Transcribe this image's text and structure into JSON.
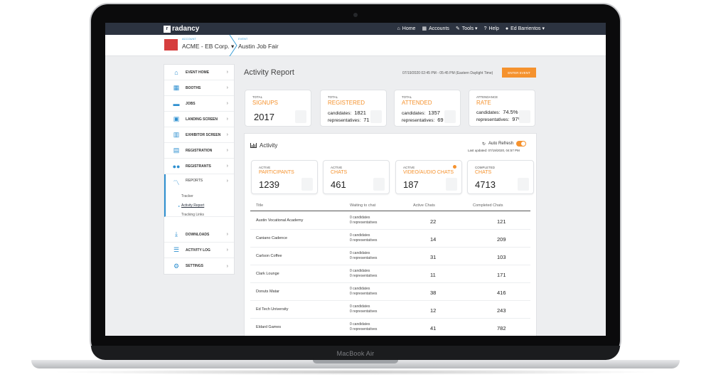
{
  "device": {
    "brand": "MacBook Air"
  },
  "topnav": {
    "logo_text": "radancy",
    "items": [
      {
        "icon": "home-icon",
        "label": "Home"
      },
      {
        "icon": "building-icon",
        "label": "Accounts"
      },
      {
        "icon": "wrench-icon",
        "label": "Tools ▾"
      },
      {
        "icon": "question-circle-icon",
        "label": "Help"
      },
      {
        "icon": "user-icon",
        "label": "Ed Barrientos ▾"
      }
    ]
  },
  "eventbar": {
    "account_caption": "ACCOUNT",
    "account_name": "ACME - EB Corp. ▾",
    "event_caption": "EVENT",
    "event_name": "Austin Job Fair"
  },
  "sidebar": {
    "items": [
      {
        "label": "EVENT HOME",
        "icon": "home-icon"
      },
      {
        "label": "BOOTHS",
        "icon": "grid-icon"
      },
      {
        "label": "JOBS",
        "icon": "briefcase-icon"
      },
      {
        "label": "LANDING SCREEN",
        "icon": "image-icon"
      },
      {
        "label": "EXHIBITOR SCREEN",
        "icon": "columns-icon"
      },
      {
        "label": "REGISTRATION",
        "icon": "form-icon"
      },
      {
        "label": "REGISTRANTS",
        "icon": "users-icon"
      },
      {
        "label": "REPORTS",
        "icon": "line-chart-icon"
      },
      {
        "label": "DOWNLOADS",
        "icon": "download-icon"
      },
      {
        "label": "ACTIVITY LOG",
        "icon": "list-icon"
      },
      {
        "label": "SETTINGS",
        "icon": "gear-icon"
      }
    ],
    "subitems": [
      "Tracker",
      "Activity Report",
      "Tracking Links"
    ]
  },
  "report": {
    "title": "Activity Report",
    "date_range": "07/19/2020 02:45 PM - 05:45 PM (Eastern Daylight Time)",
    "enter_button": "ENTER EVENT"
  },
  "stats": [
    {
      "caption": "TOTAL",
      "label": "SIGNUPS",
      "value": "2017"
    },
    {
      "caption": "TOTAL",
      "label": "REGISTERED",
      "rows": [
        {
          "k": "candidates:",
          "v": "1821"
        },
        {
          "k": "representatives:",
          "v": "71"
        }
      ]
    },
    {
      "caption": "TOTAL",
      "label": "ATTENDED",
      "rows": [
        {
          "k": "candidates:",
          "v": "1357"
        },
        {
          "k": "representatives:",
          "v": "69"
        }
      ]
    },
    {
      "caption": "ATTENDANCE",
      "label": "RATE",
      "rows": [
        {
          "k": "candidates:",
          "v": "74.5%"
        },
        {
          "k": "representatives:",
          "v": "97%"
        }
      ]
    }
  ],
  "activity": {
    "title": "Activity",
    "auto_refresh": "Auto Refresh",
    "auto_refresh_on": true,
    "last_updated": "Last updated: 07/19/2020, 04:57 PM",
    "cards": [
      {
        "caption": "ACTIVE",
        "label": "PARTICIPANTS",
        "value": "1239"
      },
      {
        "caption": "ACTIVE",
        "label": "CHATS",
        "value": "461"
      },
      {
        "caption": "ACTIVE",
        "label": "VIDEO/AUDIO CHATS",
        "value": "187"
      },
      {
        "caption": "COMPLETED",
        "label": "CHATS",
        "value": "4713"
      }
    ],
    "columns": [
      "Title",
      "Waiting to chat",
      "Active Chats",
      "Completed Chats"
    ],
    "rows": [
      {
        "title": "Austin Vocational Academy",
        "wait1": "0 candidates",
        "wait2": "0 representatives",
        "active": "22",
        "completed": "121"
      },
      {
        "title": "Caniano Cadence",
        "wait1": "0 candidates",
        "wait2": "0 representatives",
        "active": "14",
        "completed": "209"
      },
      {
        "title": "Carlson Coffee",
        "wait1": "0 candidates",
        "wait2": "0 representatives",
        "active": "31",
        "completed": "103"
      },
      {
        "title": "Clark Lounge",
        "wait1": "0 candidates",
        "wait2": "0 representatives",
        "active": "11",
        "completed": "171"
      },
      {
        "title": "Donuts Matar",
        "wait1": "0 candidates",
        "wait2": "0 representatives",
        "active": "38",
        "completed": "416"
      },
      {
        "title": "Ed Tech University",
        "wait1": "0 candidates",
        "wait2": "0 representatives",
        "active": "12",
        "completed": "243"
      },
      {
        "title": "Eldard Games",
        "wait1": "0 candidates",
        "wait2": "0 representatives",
        "active": "41",
        "completed": "782"
      }
    ]
  },
  "colors": {
    "accent": "#f5922e",
    "nav": "#2c3340",
    "link": "#2d8fd0"
  }
}
